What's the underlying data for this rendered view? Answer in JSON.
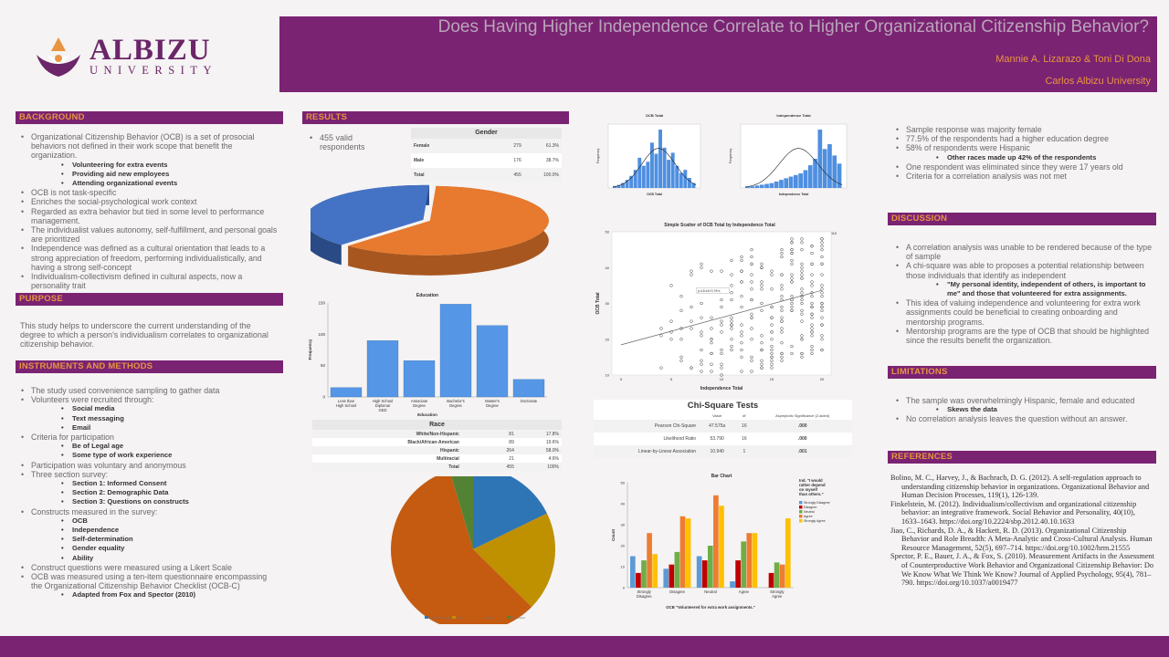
{
  "logo": {
    "name": "ALBIZU",
    "sub": "UNIVERSITY"
  },
  "banner": {
    "title": "Does Having Higher Independence Correlate to Higher Organizational Citizenship Behavior?",
    "authors": "Mannie A. Lizarazo & Toni Di Dona",
    "institution": "Carlos Albizu University"
  },
  "colors": {
    "purple": "#7a2373",
    "orange": "#e89441"
  },
  "background": {
    "heading": "BACKGROUND",
    "items": [
      {
        "level": 1,
        "text": "Organizational Citizenship Behavior (OCB) is a set of prosocial behaviors not defined in their work scope that benefit the organization."
      },
      {
        "level": 2,
        "text": "Volunteering for extra events"
      },
      {
        "level": 2,
        "text": "Providing aid new employees"
      },
      {
        "level": 2,
        "text": "Attending organizational events"
      },
      {
        "level": 1,
        "text": "OCB is not task-specific"
      },
      {
        "level": 1,
        "text": "Enriches the social-psychological work context"
      },
      {
        "level": 1,
        "text": "Regarded as extra behavior but tied in some level to performance management."
      },
      {
        "level": 1,
        "text": "The individualist values autonomy, self-fulfillment, and personal goals are prioritized"
      },
      {
        "level": 1,
        "text": "Independence was defined as a cultural orientation that leads to a strong appreciation of freedom, performing individualistically, and having a strong self-concept"
      },
      {
        "level": 1,
        "text": "Individualism-collectivism defined in cultural aspects, now a personality trait"
      }
    ]
  },
  "purpose": {
    "heading": "PURPOSE",
    "text": "This study helps to underscore the current understanding of the degree to which a person's individualism correlates to organizational citizenship behavior."
  },
  "methods": {
    "heading": "INSTRUMENTS AND METHODS",
    "items": [
      {
        "level": 1,
        "text": "The study used convenience sampling to gather data"
      },
      {
        "level": 1,
        "text": "Volunteers were recruited through:"
      },
      {
        "level": 2,
        "text": "Social media"
      },
      {
        "level": 2,
        "text": "Text messaging"
      },
      {
        "level": 2,
        "text": "Email"
      },
      {
        "level": 1,
        "text": "Criteria for participation"
      },
      {
        "level": 2,
        "text": "Be of Legal age"
      },
      {
        "level": 2,
        "text": "Some type of work experience"
      },
      {
        "level": 1,
        "text": "Participation was voluntary and anonymous"
      },
      {
        "level": 1,
        "text": "Three section survey:"
      },
      {
        "level": 2,
        "text": "Section 1: Informed Consent"
      },
      {
        "level": 2,
        "text": "Section 2: Demographic Data"
      },
      {
        "level": 2,
        "text": "Section 3: Questions on constructs"
      },
      {
        "level": 1,
        "text": "Constructs measured in the survey:"
      },
      {
        "level": 2,
        "text": "OCB"
      },
      {
        "level": 2,
        "text": "Independence"
      },
      {
        "level": 2,
        "text": "Self-determination"
      },
      {
        "level": 2,
        "text": "Gender equality"
      },
      {
        "level": 2,
        "text": "Ability"
      },
      {
        "level": 1,
        "text": "Construct questions were measured using a Likert Scale"
      },
      {
        "level": 1,
        "text": "OCB was measured using a ten-item questionnaire encompassing the Organizational Citizenship Behavior Checklist (OCB-C)"
      },
      {
        "level": 2,
        "text": "Adapted from Fox and Spector (2010)"
      }
    ]
  },
  "results": {
    "heading": "RESULTS",
    "valid": "455 valid respondents",
    "gender_table": {
      "title": "Gender",
      "rows": [
        {
          "label": "Female",
          "n": "279",
          "pct": "61.3%"
        },
        {
          "label": "Male",
          "n": "176",
          "pct": "38.7%"
        },
        {
          "label": "Total",
          "n": "455",
          "pct": "100.0%"
        }
      ]
    },
    "race_table": {
      "title": "Race",
      "rows": [
        {
          "label": "White/Non-Hispanic",
          "n": "81",
          "pct": "17.8%"
        },
        {
          "label": "Black/African-American",
          "n": "89",
          "pct": "19.6%"
        },
        {
          "label": "Hispanic",
          "n": "264",
          "pct": "58.0%"
        },
        {
          "label": "Multiracial",
          "n": "21",
          "pct": "4.6%"
        },
        {
          "label": "Total",
          "n": "455",
          "pct": "100%"
        }
      ]
    }
  },
  "chi_square": {
    "title": "Chi-Square Tests",
    "headers": [
      "",
      "Value",
      "df",
      "Asymptotic Significance (2-sided)"
    ],
    "rows": [
      {
        "label": "Pearson Chi-Square",
        "value": "47.575a",
        "df": "16",
        "sig": ".000"
      },
      {
        "label": "Likelihood Ratio",
        "value": "53.790",
        "df": "16",
        "sig": ".000"
      },
      {
        "label": "Linear-by-Linear Association",
        "value": "10.940",
        "df": "1",
        "sig": ".001"
      }
    ]
  },
  "summary": {
    "items": [
      {
        "level": 1,
        "text": "Sample response was majority female"
      },
      {
        "level": 1,
        "text": "77.5% of the respondents had a higher education degree"
      },
      {
        "level": 1,
        "text": "58% of respondents were Hispanic"
      },
      {
        "level": 2,
        "text": "Other races made up 42% of the respondents"
      },
      {
        "level": 1,
        "text": "One respondent was eliminated since they were 17 years old"
      },
      {
        "level": 1,
        "text": "Criteria for a correlation analysis was not met"
      }
    ]
  },
  "discussion": {
    "heading": "DISCUSSION",
    "items": [
      {
        "level": 1,
        "text": "A correlation analysis was unable to be rendered because of the type of sample"
      },
      {
        "level": 1,
        "text": "A chi-square was able to proposes a potential relationship between those individuals that identify as independent"
      },
      {
        "level": 2,
        "text": "\"My personal identity, independent of others, is important to me\" and those that volunteered for extra assignments."
      },
      {
        "level": 1,
        "text": "This idea of valuing independence and volunteering for extra work assignments could be beneficial to creating onboarding and mentorship programs."
      },
      {
        "level": 1,
        "text": "Mentorship programs are the type of OCB that should be highlighted since the results benefit the organization."
      }
    ]
  },
  "limitations": {
    "heading": "LIMITATIONS",
    "items": [
      {
        "level": 1,
        "text": "The sample was overwhelmingly Hispanic, female and educated"
      },
      {
        "level": 2,
        "text": "Skews the data"
      },
      {
        "level": 1,
        "text": "No correlation analysis leaves the question without an answer."
      }
    ]
  },
  "references": {
    "heading": "REFERENCES",
    "items": [
      "Bolino, M. C., Harvey, J., & Bachrach, D. G. (2012). A self-regulation approach to understanding citizenship behavior in organizations. Organizational Behavior and Human Decision Processes, 119(1), 126-139.",
      "Finkelstein, M. (2012). Individualism/collectivism and organizational citizenship behavior: an integrative framework. Social Behavior and Personality, 40(10), 1633–1643. https://doi.org/10.2224/sbp.2012.40.10.1633",
      "Jiao, C., Richards, D. A., & Hackett, R. D. (2013). Organizational Citizenship Behavior and Role Breadth: A Meta-Analytic and Cross-Cultural Analysis. Human Resource Management, 52(5), 697–714. https://doi.org/10.1002/hrm.21555",
      "Spector, P. E., Bauer, J. A., & Fox, S. (2010). Measurement Artifacts in the Assessment of Counterproductive Work Behavior and Organizational Citizenship Behavior: Do We Know What We Think We Know? Journal of Applied Psychology, 95(4), 781–790. https://doi.org/10.1037/a0019477"
    ]
  },
  "chart_data": [
    {
      "id": "gender_pie",
      "type": "pie",
      "title": "",
      "categories": [
        "Female",
        "Male"
      ],
      "values": [
        279,
        176
      ],
      "colors": [
        "#e77a2e",
        "#4472c4"
      ]
    },
    {
      "id": "education_bar",
      "type": "bar",
      "title": "Education",
      "xlabel": "Education",
      "ylabel": "Frequency",
      "categories": [
        "Less than High School",
        "High School Diploma/ GED",
        "Associate Degree",
        "Bachelor's Degree",
        "Master's Degree",
        "Doctorate"
      ],
      "values": [
        15,
        90,
        58,
        148,
        114,
        28
      ],
      "ylim": [
        0,
        150
      ],
      "yticks": [
        "0",
        "50",
        "100",
        "150"
      ]
    },
    {
      "id": "race_pie",
      "type": "pie",
      "title": "Race",
      "categories": [
        "White/Non-Hispanic",
        "Black",
        "Hispanic",
        "Multiracial"
      ],
      "values": [
        81,
        89,
        264,
        21
      ],
      "colors": [
        "#2e75b6",
        "#bf9000",
        "#c55a11",
        "#548235"
      ]
    },
    {
      "id": "ocb_hist",
      "type": "bar",
      "title": "OCB Total",
      "xlabel": "OCB Total",
      "ylabel": "Frequency",
      "values": [
        2,
        3,
        5,
        8,
        12,
        18,
        30,
        22,
        26,
        45,
        34,
        58,
        40,
        28,
        35,
        22,
        15,
        18,
        10,
        5
      ]
    },
    {
      "id": "indep_hist",
      "type": "bar",
      "title": "Independence Total",
      "xlabel": "Independence Total",
      "ylabel": "Frequency",
      "values": [
        2,
        2,
        3,
        4,
        5,
        6,
        8,
        10,
        12,
        14,
        16,
        18,
        22,
        28,
        36,
        72,
        48,
        54,
        40,
        30
      ]
    },
    {
      "id": "scatter",
      "type": "scatter",
      "title": "Simple Scatter of OCB Total by Independence Total",
      "xlabel": "Independence Total",
      "ylabel": "OCB Total",
      "annotation": "R² Linear = 0.115",
      "fit_label": "y=18.44+0.76*x",
      "xlim": [
        0,
        20
      ],
      "ylim": [
        10,
        50
      ],
      "xticks": [
        "0",
        "5",
        "10",
        "15",
        "20"
      ],
      "yticks": [
        "10",
        "20",
        "30",
        "40",
        "50"
      ]
    },
    {
      "id": "ocb_bar",
      "type": "bar",
      "title": "Bar Chart",
      "xlabel": "OCB \"Volunteered for extra work assignments.\"",
      "ylabel": "Count",
      "legend_title": "Ind. \"I would rather depend on myself than others.\"",
      "categories": [
        "Strongly Disagree",
        "Disagree",
        "Neutral",
        "Agree",
        "Strongly Agree"
      ],
      "yticks": [
        "0",
        "10",
        "20",
        "30",
        "40",
        "50"
      ],
      "ylim": [
        0,
        50
      ],
      "series": [
        {
          "name": "Strongly Disagree",
          "color": "#5b9bd5",
          "values": [
            15,
            9,
            15,
            3,
            0
          ]
        },
        {
          "name": "Disagree",
          "color": "#c00000",
          "values": [
            7,
            11,
            13,
            13,
            7
          ]
        },
        {
          "name": "Neutral",
          "color": "#70ad47",
          "values": [
            13,
            17,
            20,
            22,
            12
          ]
        },
        {
          "name": "Agree",
          "color": "#ed7d31",
          "values": [
            26,
            34,
            44,
            26,
            11
          ]
        },
        {
          "name": "Strongly Agree",
          "color": "#ffc000",
          "values": [
            16,
            33,
            39,
            26,
            33
          ]
        }
      ]
    }
  ]
}
